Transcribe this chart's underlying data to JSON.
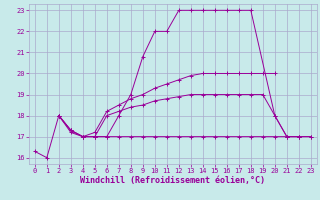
{
  "xlabel": "Windchill (Refroidissement éolien,°C)",
  "background_color": "#c8eaea",
  "grid_color": "#aaaacc",
  "line_color": "#990099",
  "lines": [
    {
      "x": [
        0,
        1,
        2,
        3,
        4,
        5,
        6,
        7,
        8,
        9,
        10,
        11,
        12,
        13,
        14,
        15,
        16,
        17,
        18,
        19,
        20,
        21,
        22,
        23
      ],
      "y": [
        16.3,
        16.0,
        18.0,
        17.2,
        17.0,
        17.0,
        17.0,
        18.0,
        19.0,
        20.8,
        22.0,
        22.0,
        23.0,
        23.0,
        23.0,
        23.0,
        23.0,
        23.0,
        23.0,
        null,
        18.0,
        17.0,
        17.0,
        17.0
      ]
    },
    {
      "x": [
        2,
        3,
        4,
        5,
        6,
        7,
        8,
        9,
        10,
        11,
        12,
        13,
        14,
        15,
        16,
        17,
        18,
        19,
        20
      ],
      "y": [
        18.0,
        17.3,
        17.0,
        17.2,
        18.2,
        18.5,
        18.8,
        19.0,
        19.3,
        19.5,
        19.7,
        19.9,
        20.0,
        20.0,
        20.0,
        20.0,
        20.0,
        20.0,
        20.0
      ]
    },
    {
      "x": [
        2,
        3,
        4,
        5,
        6,
        7,
        8,
        9,
        10,
        11,
        12,
        13,
        14,
        15,
        16,
        17,
        18,
        19,
        20,
        21,
        22
      ],
      "y": [
        18.0,
        17.3,
        17.0,
        17.0,
        18.0,
        18.2,
        18.4,
        18.5,
        18.7,
        18.8,
        18.9,
        19.0,
        19.0,
        19.0,
        19.0,
        19.0,
        19.0,
        19.0,
        18.0,
        17.0,
        17.0
      ]
    },
    {
      "x": [
        2,
        3,
        4,
        5,
        6,
        7,
        8,
        9,
        10,
        11,
        12,
        13,
        14,
        15,
        16,
        17,
        18,
        19,
        20,
        21,
        22,
        23
      ],
      "y": [
        18.0,
        17.3,
        17.0,
        17.0,
        17.0,
        17.0,
        17.0,
        17.0,
        17.0,
        17.0,
        17.0,
        17.0,
        17.0,
        17.0,
        17.0,
        17.0,
        17.0,
        17.0,
        17.0,
        17.0,
        17.0,
        17.0
      ]
    }
  ],
  "xlim": [
    -0.5,
    23.5
  ],
  "ylim": [
    15.7,
    23.3
  ],
  "xticks": [
    0,
    1,
    2,
    3,
    4,
    5,
    6,
    7,
    8,
    9,
    10,
    11,
    12,
    13,
    14,
    15,
    16,
    17,
    18,
    19,
    20,
    21,
    22,
    23
  ],
  "yticks": [
    16,
    17,
    18,
    19,
    20,
    21,
    22,
    23
  ],
  "tick_fontsize": 5.0,
  "xlabel_fontsize": 6.0,
  "marker": "+"
}
